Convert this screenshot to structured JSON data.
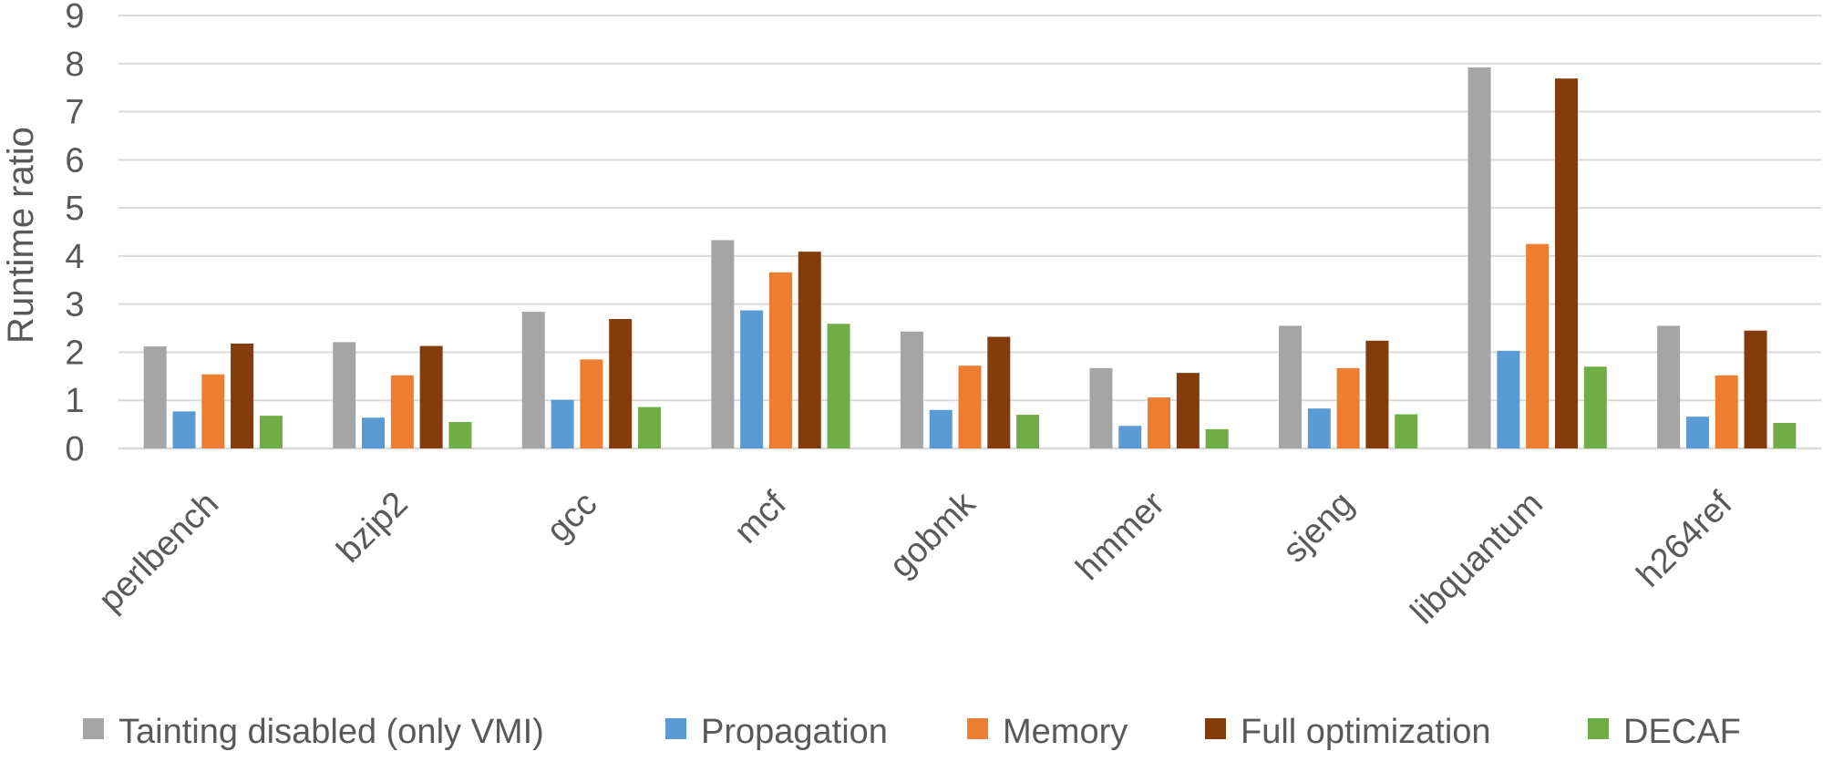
{
  "chart_data": {
    "type": "bar",
    "title": "",
    "xlabel": "",
    "ylabel": "Runtime ratio",
    "ylim": [
      0,
      9
    ],
    "yticks": [
      0,
      1,
      2,
      3,
      4,
      5,
      6,
      7,
      8,
      9
    ],
    "grid": true,
    "legend_position": "bottom",
    "categories": [
      "perlbench",
      "bzip2",
      "gcc",
      "mcf",
      "gobmk",
      "hmmer",
      "sjeng",
      "libquantum",
      "h264ref"
    ],
    "series": [
      {
        "name": "Tainting disabled (only VMI)",
        "color": "#a5a5a5",
        "values": [
          2.12,
          2.21,
          2.84,
          4.33,
          2.43,
          1.67,
          2.55,
          7.92,
          2.55
        ]
      },
      {
        "name": "Propagation",
        "color": "#5b9bd5",
        "values": [
          0.77,
          0.64,
          1.01,
          2.87,
          0.8,
          0.47,
          0.83,
          2.03,
          0.66
        ]
      },
      {
        "name": "Memory",
        "color": "#ed7d31",
        "values": [
          1.54,
          1.52,
          1.85,
          3.66,
          1.72,
          1.06,
          1.67,
          4.25,
          1.52
        ]
      },
      {
        "name": "Full optimization",
        "color": "#843c0c",
        "values": [
          2.18,
          2.13,
          2.69,
          4.09,
          2.32,
          1.57,
          2.24,
          7.69,
          2.45
        ]
      },
      {
        "name": "DECAF",
        "color": "#70ad47",
        "values": [
          0.68,
          0.55,
          0.86,
          2.59,
          0.7,
          0.4,
          0.71,
          1.7,
          0.53
        ]
      }
    ]
  }
}
